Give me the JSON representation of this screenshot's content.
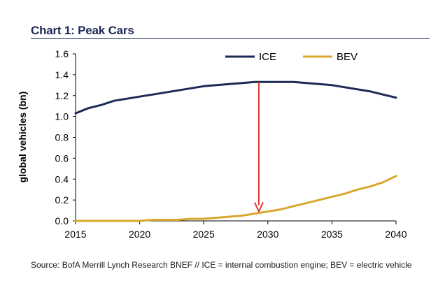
{
  "title": "Chart 1: Peak Cars",
  "source": "Source: BofA Merrill Lynch Research BNEF // ICE = internal combustion engine; BEV = electric vehicle",
  "chart_data": {
    "type": "line",
    "ylabel": "global vehicles (bn)",
    "xlabel": "",
    "xlim": [
      2015,
      2040
    ],
    "ylim": [
      0,
      1.6
    ],
    "x_ticks": [
      "2015",
      "2020",
      "2025",
      "2030",
      "2035",
      "2040"
    ],
    "y_ticks": [
      "0.0",
      "0.2",
      "0.4",
      "0.6",
      "0.8",
      "1.0",
      "1.2",
      "1.4",
      "1.6"
    ],
    "grid": false,
    "legend_position": "top-right",
    "x": [
      2015,
      2016,
      2017,
      2018,
      2019,
      2020,
      2021,
      2022,
      2023,
      2024,
      2025,
      2026,
      2027,
      2028,
      2029,
      2030,
      2031,
      2032,
      2033,
      2034,
      2035,
      2036,
      2037,
      2038,
      2039,
      2040
    ],
    "series": [
      {
        "name": "ICE",
        "color": "#1c2a56",
        "values": [
          1.03,
          1.08,
          1.11,
          1.15,
          1.17,
          1.19,
          1.21,
          1.23,
          1.25,
          1.27,
          1.29,
          1.3,
          1.31,
          1.32,
          1.33,
          1.33,
          1.33,
          1.33,
          1.32,
          1.31,
          1.3,
          1.28,
          1.26,
          1.24,
          1.21,
          1.18
        ]
      },
      {
        "name": "BEV",
        "color": "#d8a82e",
        "values": [
          0.0,
          0.0,
          0.0,
          0.0,
          0.0,
          0.0,
          0.01,
          0.01,
          0.01,
          0.02,
          0.02,
          0.03,
          0.04,
          0.05,
          0.07,
          0.09,
          0.11,
          0.14,
          0.17,
          0.2,
          0.23,
          0.26,
          0.3,
          0.33,
          0.37,
          0.43
        ]
      }
    ],
    "annotations": [
      {
        "type": "arrow",
        "color": "#e03a2f",
        "x": 2029.3,
        "y_from": 1.33,
        "y_to": 0.09
      }
    ]
  }
}
